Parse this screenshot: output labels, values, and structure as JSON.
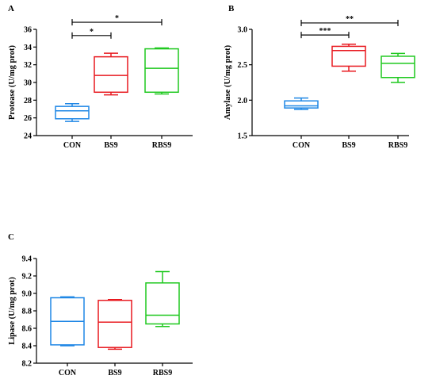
{
  "colors": {
    "CON": "#1f87e5",
    "BS9": "#e8191f",
    "RBS9": "#1ec81e",
    "axis": "#000000"
  },
  "chart_data": [
    {
      "type": "box",
      "panel_label": "A",
      "ylabel": "Protease (U/mg prot)",
      "ylim": [
        24,
        36
      ],
      "yticks": [
        "24",
        "26",
        "28",
        "30",
        "32",
        "34",
        "36"
      ],
      "ytick_values": [
        24,
        26,
        28,
        30,
        32,
        34,
        36
      ],
      "categories": [
        "CON",
        "BS9",
        "RBS9"
      ],
      "series": [
        {
          "category": "CON",
          "min": 25.6,
          "q1": 25.9,
          "median": 26.8,
          "q3": 27.3,
          "max": 27.6
        },
        {
          "category": "BS9",
          "min": 28.6,
          "q1": 28.9,
          "median": 30.8,
          "q3": 32.9,
          "max": 33.3
        },
        {
          "category": "RBS9",
          "min": 28.7,
          "q1": 28.9,
          "median": 31.6,
          "q3": 33.8,
          "max": 33.9
        }
      ],
      "significance": [
        {
          "from": 0,
          "to": 1,
          "label": "*",
          "y": 35.3
        },
        {
          "from": 0,
          "to": 2,
          "label": "*",
          "y": 36.8
        }
      ]
    },
    {
      "type": "box",
      "panel_label": "B",
      "ylabel": "Amylase (U/mg prot)",
      "ylim": [
        1.5,
        3.0
      ],
      "yticks": [
        "1.5",
        "2.0",
        "2.5",
        "3.0"
      ],
      "ytick_values": [
        1.5,
        2.0,
        2.5,
        3.0
      ],
      "categories": [
        "CON",
        "BS9",
        "RBS9"
      ],
      "series": [
        {
          "category": "CON",
          "min": 1.87,
          "q1": 1.89,
          "median": 1.92,
          "q3": 1.99,
          "max": 2.03
        },
        {
          "category": "BS9",
          "min": 2.41,
          "q1": 2.48,
          "median": 2.7,
          "q3": 2.76,
          "max": 2.79
        },
        {
          "category": "RBS9",
          "min": 2.25,
          "q1": 2.32,
          "median": 2.52,
          "q3": 2.62,
          "max": 2.66
        }
      ],
      "significance": [
        {
          "from": 0,
          "to": 1,
          "label": "***",
          "y": 2.92
        },
        {
          "from": 0,
          "to": 2,
          "label": "**",
          "y": 3.09
        }
      ]
    },
    {
      "type": "box",
      "panel_label": "C",
      "ylabel": "Lipase (U/mg prot)",
      "ylim": [
        8.2,
        9.4
      ],
      "yticks": [
        "8.2",
        "8.4",
        "8.6",
        "8.8",
        "9.0",
        "9.2",
        "9.4"
      ],
      "ytick_values": [
        8.2,
        8.4,
        8.6,
        8.8,
        9.0,
        9.2,
        9.4
      ],
      "categories": [
        "CON",
        "BS9",
        "RBS9"
      ],
      "series": [
        {
          "category": "CON",
          "min": 8.4,
          "q1": 8.41,
          "median": 8.68,
          "q3": 8.95,
          "max": 8.96
        },
        {
          "category": "BS9",
          "min": 8.36,
          "q1": 8.38,
          "median": 8.67,
          "q3": 8.92,
          "max": 8.93
        },
        {
          "category": "RBS9",
          "min": 8.62,
          "q1": 8.65,
          "median": 8.75,
          "q3": 9.12,
          "max": 9.25
        }
      ],
      "significance": []
    }
  ]
}
